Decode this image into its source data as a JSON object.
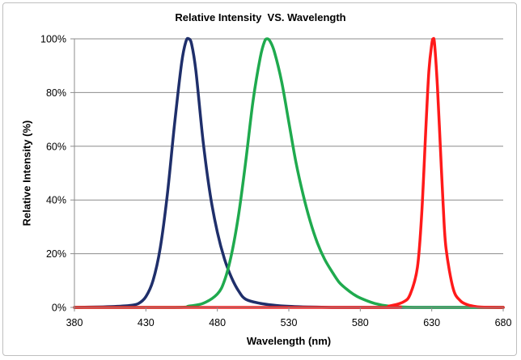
{
  "chart_data": {
    "type": "line",
    "title": "Relative Intensity  VS. Wavelength",
    "xlabel": "Wavelength (nm)",
    "ylabel": "Relative Intensity (%)",
    "xlim": [
      380,
      680
    ],
    "ylim": [
      0,
      100
    ],
    "x_ticks": [
      380,
      430,
      480,
      530,
      580,
      630,
      680
    ],
    "y_ticks": [
      0,
      20,
      40,
      60,
      80,
      100
    ],
    "y_tick_labels": [
      "0%",
      "20%",
      "40%",
      "60%",
      "80%",
      "100%"
    ],
    "grid": "horizontal",
    "legend": "none",
    "series": [
      {
        "color": "#1f2f6b",
        "x": [
          380,
          400,
          410,
          420,
          425,
          430,
          435,
          440,
          445,
          450,
          455,
          458,
          460,
          462,
          465,
          470,
          475,
          480,
          485,
          490,
          495,
          500,
          510,
          520,
          530,
          540,
          550,
          560,
          580,
          680
        ],
        "y": [
          0,
          0.2,
          0.4,
          0.8,
          1.5,
          4,
          10,
          22,
          42,
          68,
          91,
          99,
          100,
          98,
          88,
          62,
          42,
          28,
          18,
          11,
          6,
          3,
          1.5,
          0.8,
          0.4,
          0.2,
          0.1,
          0,
          0,
          0
        ]
      },
      {
        "color": "#1faa4e",
        "x": [
          380,
          450,
          460,
          470,
          480,
          485,
          490,
          495,
          500,
          505,
          510,
          513,
          515,
          517,
          520,
          525,
          530,
          535,
          540,
          545,
          550,
          555,
          560,
          565,
          570,
          575,
          580,
          590,
          600,
          620,
          680
        ],
        "y": [
          0,
          0,
          0.5,
          1.5,
          5,
          10,
          20,
          35,
          55,
          77,
          93,
          99,
          100,
          99,
          95,
          84,
          69,
          54,
          42,
          32,
          24,
          18,
          13.5,
          9.5,
          7,
          5,
          3.5,
          1.5,
          0.5,
          0,
          0
        ]
      },
      {
        "color": "#ff1a1a",
        "x": [
          380,
          590,
          600,
          610,
          615,
          620,
          623,
          626,
          628,
          630,
          631,
          632,
          634,
          636,
          638,
          640,
          645,
          650,
          655,
          660,
          665,
          680
        ],
        "y": [
          0,
          0,
          0.5,
          2,
          5,
          15,
          35,
          68,
          88,
          98,
          100,
          98,
          82,
          60,
          38,
          22,
          7,
          2.5,
          1,
          0.4,
          0.1,
          0
        ]
      }
    ]
  }
}
